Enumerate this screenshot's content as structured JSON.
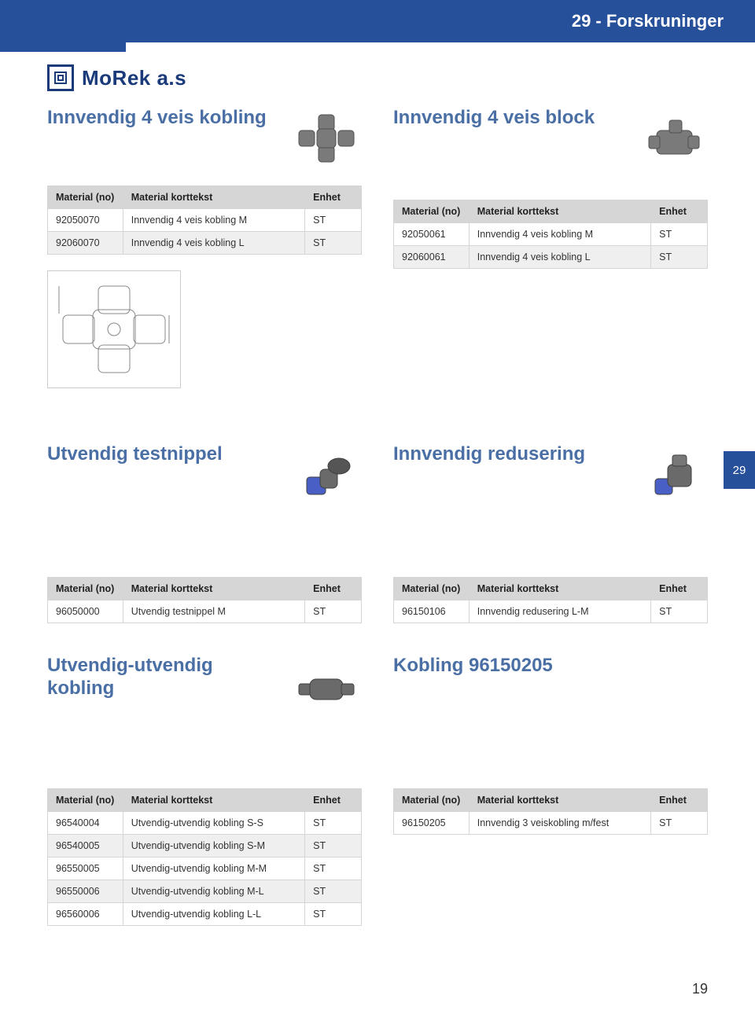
{
  "header": {
    "title": "29 - Forskruninger"
  },
  "logo": {
    "text": "MoRek a.s"
  },
  "side_tab": "29",
  "page_number": "19",
  "sections": {
    "s1": {
      "title": "Innvendig 4 veis kobling"
    },
    "s2": {
      "title": "Innvendig 4 veis block"
    },
    "s3": {
      "title": "Utvendig testnippel"
    },
    "s4": {
      "title": "Innvendig redusering"
    },
    "s5": {
      "title": "Utvendig-utvendig kobling"
    },
    "s6": {
      "title": "Kobling 96150205"
    }
  },
  "tables": {
    "headers": {
      "c1": "Material (no)",
      "c2": "Material korttekst",
      "c3": "Enhet"
    },
    "t1": [
      {
        "c1": "92050070",
        "c2": "Innvendig 4 veis kobling M",
        "c3": "ST"
      },
      {
        "c1": "92060070",
        "c2": "Innvendig 4 veis kobling L",
        "c3": "ST"
      }
    ],
    "t2": [
      {
        "c1": "92050061",
        "c2": "Innvendig 4 veis kobling M",
        "c3": "ST"
      },
      {
        "c1": "92060061",
        "c2": "Innvendig 4 veis kobling L",
        "c3": "ST"
      }
    ],
    "t3": [
      {
        "c1": "96050000",
        "c2": "Utvendig testnippel M",
        "c3": "ST"
      }
    ],
    "t4": [
      {
        "c1": "96150106",
        "c2": "Innvendig redusering L-M",
        "c3": "ST"
      }
    ],
    "t5": [
      {
        "c1": "96540004",
        "c2": "Utvendig-utvendig kobling S-S",
        "c3": "ST"
      },
      {
        "c1": "96540005",
        "c2": "Utvendig-utvendig kobling S-M",
        "c3": "ST"
      },
      {
        "c1": "96550005",
        "c2": "Utvendig-utvendig kobling M-M",
        "c3": "ST"
      },
      {
        "c1": "96550006",
        "c2": "Utvendig-utvendig kobling M-L",
        "c3": "ST"
      },
      {
        "c1": "96560006",
        "c2": "Utvendig-utvendig kobling L-L",
        "c3": "ST"
      }
    ],
    "t6": [
      {
        "c1": "96150205",
        "c2": "Innvendig 3 veiskobling m/fest",
        "c3": "ST"
      }
    ]
  },
  "colors": {
    "brand_blue": "#27509b",
    "title_blue": "#4a6fa5",
    "logo_blue": "#1a3a7a",
    "th_bg": "#d6d6d6",
    "row_alt_bg": "#efefef",
    "border": "#d5d5d5"
  }
}
